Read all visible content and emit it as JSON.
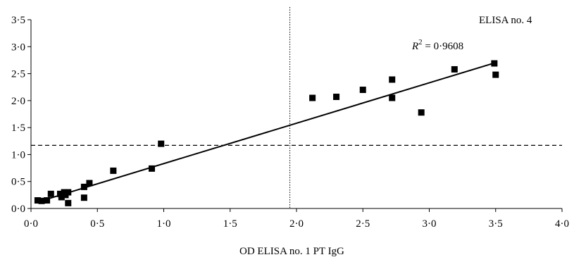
{
  "chart_data": {
    "type": "scatter",
    "title": "",
    "xlabel": "OD ELISA no. 1 PT IgG",
    "ylabel": "",
    "xlim": [
      0,
      4
    ],
    "ylim": [
      0,
      3.5
    ],
    "x_ticks": [
      0,
      0.5,
      1,
      1.5,
      2,
      2.5,
      3,
      3.5,
      4
    ],
    "y_ticks": [
      0,
      0.5,
      1,
      1.5,
      2,
      2.5,
      3,
      3.5
    ],
    "x_tick_labels": [
      "0·0",
      "0·5",
      "1·0",
      "1·5",
      "2·0",
      "2·5",
      "3·0",
      "3·5",
      "4·0"
    ],
    "y_tick_labels": [
      "0·0",
      "0·5",
      "1·0",
      "1·5",
      "2·0",
      "2·5",
      "3·0",
      "3·5"
    ],
    "grid": false,
    "points": [
      {
        "x": 0.05,
        "y": 0.15
      },
      {
        "x": 0.08,
        "y": 0.14
      },
      {
        "x": 0.12,
        "y": 0.15
      },
      {
        "x": 0.15,
        "y": 0.27
      },
      {
        "x": 0.22,
        "y": 0.27
      },
      {
        "x": 0.23,
        "y": 0.21
      },
      {
        "x": 0.25,
        "y": 0.3
      },
      {
        "x": 0.26,
        "y": 0.25
      },
      {
        "x": 0.28,
        "y": 0.3
      },
      {
        "x": 0.28,
        "y": 0.1
      },
      {
        "x": 0.4,
        "y": 0.4
      },
      {
        "x": 0.4,
        "y": 0.2
      },
      {
        "x": 0.44,
        "y": 0.47
      },
      {
        "x": 0.62,
        "y": 0.7
      },
      {
        "x": 0.91,
        "y": 0.74
      },
      {
        "x": 0.98,
        "y": 1.2
      },
      {
        "x": 2.12,
        "y": 2.05
      },
      {
        "x": 2.3,
        "y": 2.07
      },
      {
        "x": 2.5,
        "y": 2.2
      },
      {
        "x": 2.72,
        "y": 2.39
      },
      {
        "x": 2.72,
        "y": 2.05
      },
      {
        "x": 2.94,
        "y": 1.78
      },
      {
        "x": 3.19,
        "y": 2.58
      },
      {
        "x": 3.49,
        "y": 2.69
      },
      {
        "x": 3.5,
        "y": 2.48
      }
    ],
    "regression_line": {
      "x": [
        0.05,
        3.48
      ],
      "y": [
        0.12,
        2.69
      ]
    },
    "r_squared_label": {
      "prefix": "R",
      "superscript": "2",
      "suffix": " = 0·9608"
    },
    "annotation": "ELISA no. 4",
    "reference_lines": {
      "vertical_x": 1.95,
      "horizontal_y": 1.17
    },
    "colors": {
      "marker": "#000000",
      "line": "#000000"
    }
  }
}
